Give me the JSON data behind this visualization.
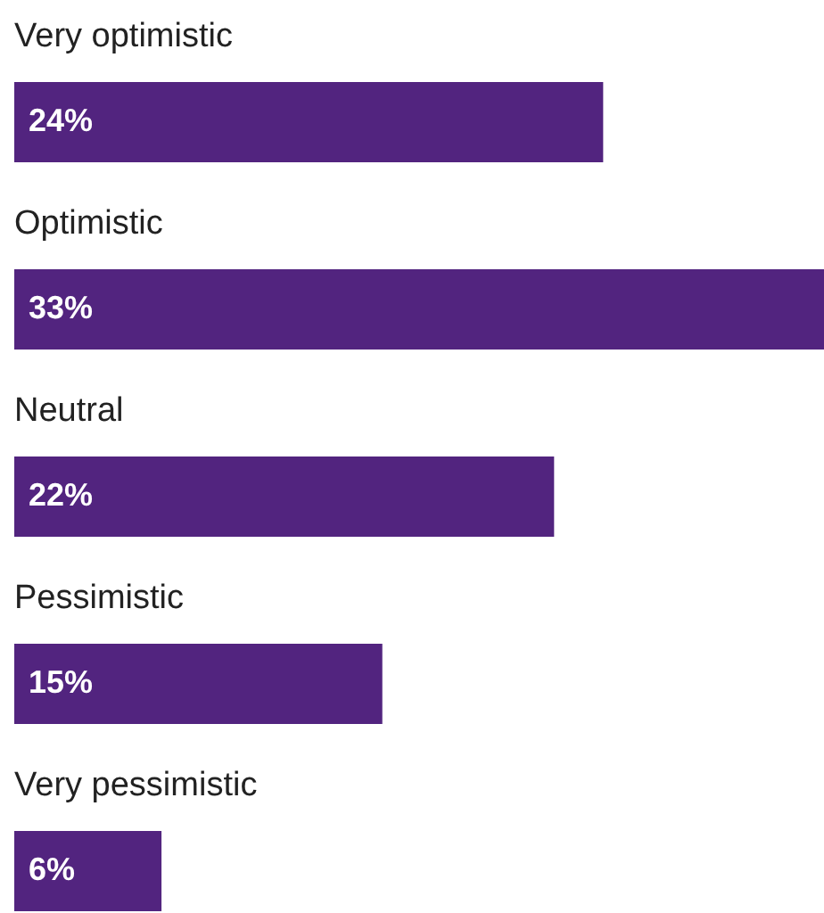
{
  "chart_data": {
    "type": "bar",
    "orientation": "horizontal",
    "categories": [
      "Very optimistic",
      "Optimistic",
      "Neutral",
      "Pessimistic",
      "Very pessimistic"
    ],
    "values": [
      24,
      33,
      22,
      15,
      6
    ],
    "value_labels": [
      "24%",
      "33%",
      "22%",
      "15%",
      "6%"
    ],
    "color": "#52247f"
  }
}
